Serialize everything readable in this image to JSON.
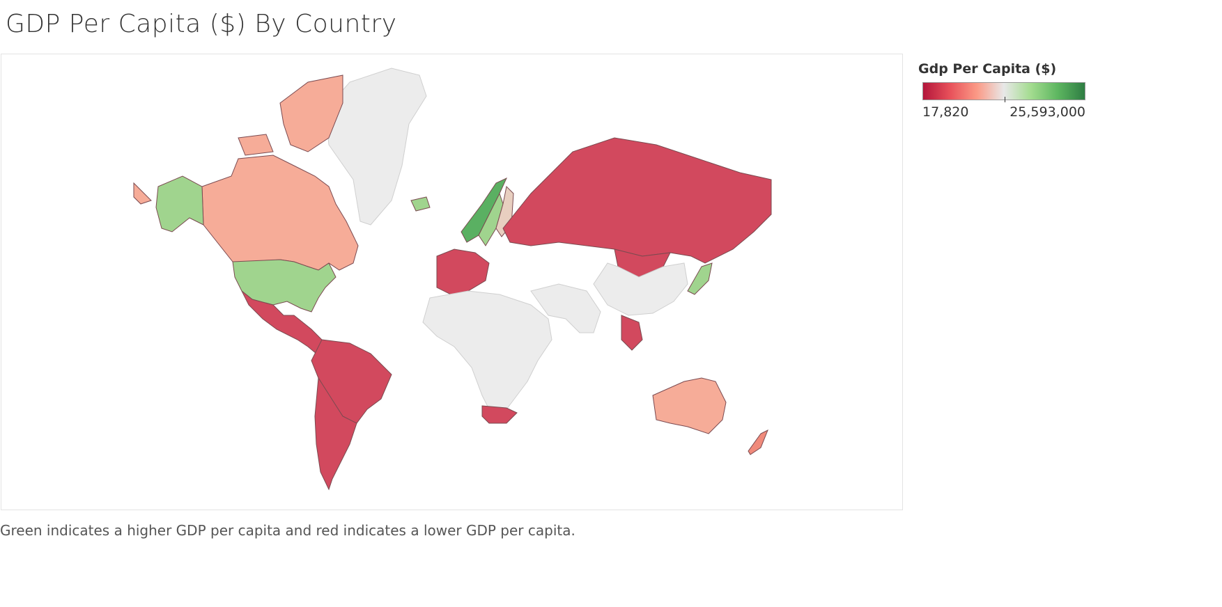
{
  "title": "GDP Per Capita ($) By Country",
  "legend": {
    "title": "Gdp Per Capita ($)",
    "min_label": "17,820",
    "max_label": "25,593,000",
    "gradient": [
      "#b3163b",
      "#e8515a",
      "#fb9a86",
      "#e8e8e8",
      "#a3dc8f",
      "#5db660",
      "#2e7d43"
    ]
  },
  "colors": {
    "no_data": "#ececec",
    "dark_red": "#d2495e",
    "light_salmon": "#f6ac98",
    "salmon": "#f08a7b",
    "light_green": "#a0d48e",
    "green": "#5ab062",
    "beige": "#e8cfc0"
  },
  "regions": [
    {
      "name": "Canada",
      "color": "light_salmon"
    },
    {
      "name": "United States",
      "color": "light_green"
    },
    {
      "name": "Alaska",
      "color": "light_green"
    },
    {
      "name": "Greenland",
      "color": "no_data"
    },
    {
      "name": "Iceland",
      "color": "light_green"
    },
    {
      "name": "Norway",
      "color": "green"
    },
    {
      "name": "Sweden",
      "color": "light_green"
    },
    {
      "name": "Finland",
      "color": "beige"
    },
    {
      "name": "Russia",
      "color": "dark_red"
    },
    {
      "name": "Mongolia",
      "color": "dark_red"
    },
    {
      "name": "China",
      "color": "no_data"
    },
    {
      "name": "Japan",
      "color": "light_green"
    },
    {
      "name": "Mexico",
      "color": "dark_red"
    },
    {
      "name": "Brazil",
      "color": "dark_red"
    },
    {
      "name": "Argentina",
      "color": "dark_red"
    },
    {
      "name": "Chile",
      "color": "dark_red"
    },
    {
      "name": "Africa",
      "color": "no_data"
    },
    {
      "name": "South Africa",
      "color": "dark_red"
    },
    {
      "name": "Australia",
      "color": "light_salmon"
    },
    {
      "name": "New Zealand",
      "color": "salmon"
    }
  ],
  "caption": "Green indicates a higher GDP per capita and red indicates a lower GDP per capita."
}
